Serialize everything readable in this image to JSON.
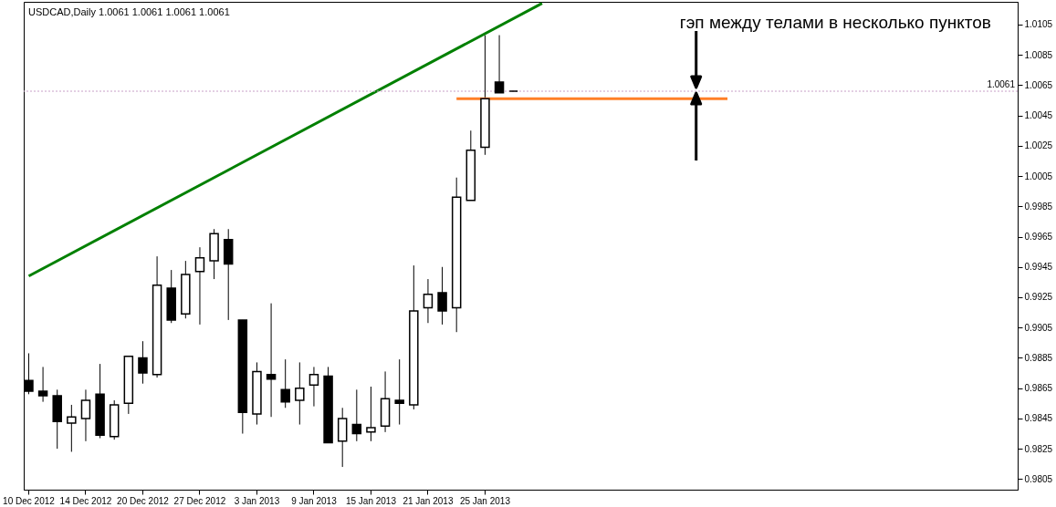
{
  "chart_data": {
    "type": "candlestick",
    "title": "USDCAD,Daily 1.0061 1.0061 1.0061 1.0061",
    "categories": [
      "10 Dec 2012",
      null,
      null,
      null,
      "14 Dec 2012",
      null,
      null,
      null,
      "20 Dec 2012",
      null,
      null,
      null,
      "27 Dec 2012",
      null,
      null,
      null,
      "3 Jan 2013",
      null,
      null,
      null,
      "9 Jan 2013",
      null,
      null,
      null,
      "15 Jan 2013",
      null,
      null,
      null,
      "21 Jan 2013",
      null,
      null,
      null,
      "25 Jan 2013",
      null,
      null,
      null,
      null,
      null,
      null,
      null,
      null,
      null,
      null,
      null,
      null,
      null,
      null,
      null,
      null,
      null,
      null,
      null,
      null,
      null,
      null,
      null,
      null,
      null,
      null,
      null,
      null,
      null,
      null,
      null,
      null,
      null,
      null,
      null,
      null,
      null
    ],
    "ohlc": [
      [
        0.987,
        0.9888,
        0.9861,
        0.9863
      ],
      [
        0.9863,
        0.9879,
        0.9856,
        0.986
      ],
      [
        0.986,
        0.9864,
        0.9825,
        0.9843
      ],
      [
        0.9842,
        0.9854,
        0.9823,
        0.9846
      ],
      [
        0.9845,
        0.9864,
        0.983,
        0.9857
      ],
      [
        0.9861,
        0.9881,
        0.9832,
        0.9834
      ],
      [
        0.9833,
        0.9857,
        0.9831,
        0.9854
      ],
      [
        0.9855,
        0.9886,
        0.9848,
        0.9886
      ],
      [
        0.9885,
        0.9896,
        0.9868,
        0.9875
      ],
      [
        0.9874,
        0.9952,
        0.9872,
        0.9933
      ],
      [
        0.9931,
        0.9943,
        0.9908,
        0.991
      ],
      [
        0.9914,
        0.9949,
        0.9911,
        0.994
      ],
      [
        0.9942,
        0.9958,
        0.9907,
        0.9951
      ],
      [
        0.9949,
        0.997,
        0.9937,
        0.9967
      ],
      [
        0.9963,
        0.997,
        0.991,
        0.9947
      ],
      [
        0.991,
        0.991,
        0.9835,
        0.9849
      ],
      [
        0.9848,
        0.9882,
        0.9841,
        0.9876
      ],
      [
        0.9874,
        0.9921,
        0.9846,
        0.9871
      ],
      [
        0.9864,
        0.9884,
        0.9852,
        0.9856
      ],
      [
        0.9857,
        0.9882,
        0.9841,
        0.9865
      ],
      [
        0.9867,
        0.9879,
        0.9853,
        0.9874
      ],
      [
        0.9873,
        0.9879,
        0.9829,
        0.9829
      ],
      [
        0.983,
        0.9852,
        0.9813,
        0.9845
      ],
      [
        0.9841,
        0.9864,
        0.983,
        0.9835
      ],
      [
        0.9836,
        0.9866,
        0.983,
        0.9839
      ],
      [
        0.984,
        0.9876,
        0.9836,
        0.9858
      ],
      [
        0.9857,
        0.9884,
        0.9841,
        0.9855
      ],
      [
        0.9854,
        0.9946,
        0.9851,
        0.9916
      ],
      [
        0.9918,
        0.9937,
        0.9908,
        0.9927
      ],
      [
        0.9928,
        0.9945,
        0.9907,
        0.9916
      ],
      [
        0.9918,
        1.0004,
        0.9902,
        0.9991
      ],
      [
        0.9989,
        1.0035,
        0.9989,
        1.0022
      ],
      [
        1.0024,
        1.0098,
        1.0019,
        1.0056
      ],
      [
        1.0067,
        1.0098,
        1.006,
        1.006
      ],
      [
        1.0061,
        1.0061,
        1.0061,
        1.0061
      ],
      null,
      null,
      null,
      null,
      null,
      null,
      null,
      null,
      null,
      null,
      null,
      null,
      null,
      null,
      null,
      null,
      null,
      null,
      null,
      null,
      null,
      null,
      null,
      null,
      null,
      null,
      null,
      null,
      null,
      null,
      null,
      null,
      null,
      null,
      null
    ],
    "series": [
      {
        "type": "line",
        "color": "#008000",
        "values": [
          0.9939,
          null,
          null,
          null,
          null,
          null,
          null,
          null,
          null,
          null,
          null,
          null,
          null,
          null,
          null,
          null,
          null,
          null,
          null,
          null,
          null,
          null,
          null,
          null,
          null,
          null,
          null,
          null,
          null,
          null,
          null,
          null,
          null,
          null,
          null,
          null,
          1.0119,
          null,
          null,
          null,
          null,
          null,
          null,
          null,
          null,
          null,
          null,
          null,
          null,
          null,
          null,
          null,
          null,
          null,
          null,
          null,
          null,
          null,
          null,
          null,
          null,
          null,
          null,
          null,
          null,
          null,
          null,
          null,
          null,
          null
        ]
      },
      {
        "type": "line",
        "color": "#ff7f27",
        "values": [
          null,
          null,
          null,
          null,
          null,
          null,
          null,
          null,
          null,
          null,
          null,
          null,
          null,
          null,
          null,
          null,
          null,
          null,
          null,
          null,
          null,
          null,
          null,
          null,
          null,
          null,
          null,
          null,
          null,
          null,
          1.0056,
          null,
          null,
          null,
          null,
          null,
          null,
          null,
          null,
          null,
          null,
          null,
          null,
          null,
          null,
          null,
          null,
          null,
          null,
          1.0056,
          null,
          null,
          null,
          null,
          null,
          null,
          null,
          null,
          null,
          null,
          null,
          null,
          null,
          null,
          null,
          null,
          null,
          null,
          null,
          null
        ]
      }
    ],
    "ylim": [
      0.9798,
      1.012
    ],
    "yticks": [
      0.9805,
      0.9825,
      0.9845,
      0.9865,
      0.9885,
      0.9905,
      0.9925,
      0.9945,
      0.9965,
      0.9985,
      1.0005,
      1.0025,
      1.0045,
      1.0065,
      1.0085,
      1.0105
    ],
    "ref_lines": [
      {
        "axis": "y",
        "value": 1.0061,
        "label": "1.0061",
        "color": "#c8a0c8",
        "line_style": "dotted"
      }
    ],
    "annotations": [
      "гэп между телами в несколько пунктов"
    ],
    "grid": false
  }
}
